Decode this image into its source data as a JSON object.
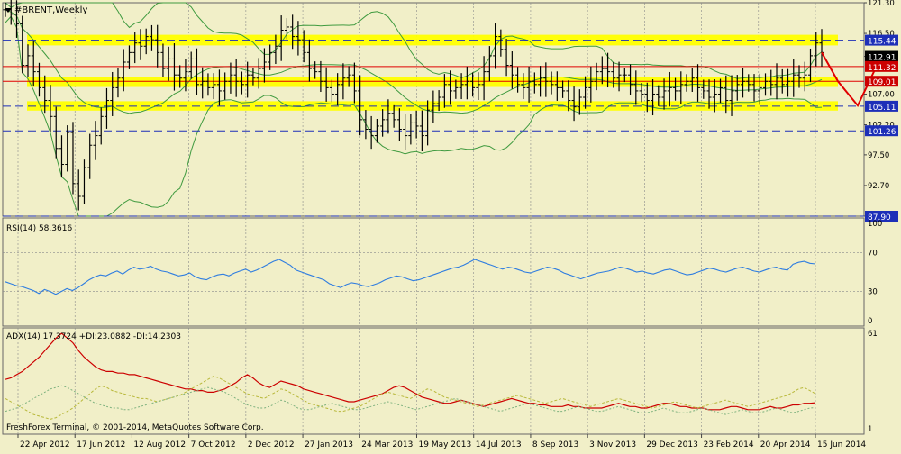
{
  "terminal": {
    "symbol_title": "#BRENT,Weekly",
    "copyright": "FreshForex Terminal, © 2001-2014, MetaQuotes Software Corp."
  },
  "colors": {
    "background": "#f1efc8",
    "grid": "#8a8a8a",
    "candle": "#000000",
    "bollinger": "#3f9a3f",
    "support_zone": "#ffff00",
    "red_line": "#e00000",
    "blue_dashed": "#1d2fb8",
    "rsi_line": "#2f7de0",
    "adx_line": "#cc0000",
    "plus_di": "#b8b83a",
    "minus_di": "#7fb27f",
    "projection": "#e00000",
    "price_label_black": "#000000",
    "price_label_blue": "#1d2fb8",
    "price_label_red": "#cc0000"
  },
  "chart_data": [
    {
      "type": "ohlc",
      "panel": "price",
      "title": "#BRENT,Weekly",
      "y_ticks": [
        "121.30",
        "116.50",
        "112.91",
        "107.00",
        "102.20",
        "97.50",
        "92.70",
        "87.90"
      ],
      "x_ticks": [
        "22 Apr 2012",
        "17 Jun 2012",
        "12 Aug 2012",
        "7 Oct 2012",
        "2 Dec 2012",
        "27 Jan 2013",
        "24 Mar 2013",
        "19 May 2013",
        "14 Jul 2013",
        "8 Sep 2013",
        "3 Nov 2013",
        "29 Dec 2013",
        "23 Feb 2014",
        "20 Apr 2014",
        "15 Jun 2014"
      ],
      "ylim": [
        87.9,
        121.3
      ],
      "closes": [
        120.2,
        119.5,
        118.0,
        111.5,
        113.0,
        110.5,
        108.0,
        106.0,
        103.5,
        98.5,
        96.0,
        101.0,
        93.0,
        91.0,
        95.5,
        99.0,
        100.5,
        103.5,
        106.0,
        108.0,
        109.5,
        112.0,
        113.5,
        115.0,
        114.5,
        116.0,
        115.5,
        113.5,
        111.0,
        112.5,
        110.0,
        109.5,
        110.5,
        112.5,
        108.5,
        109.0,
        108.0,
        108.5,
        107.5,
        109.0,
        110.0,
        109.0,
        108.5,
        110.0,
        109.5,
        111.0,
        112.0,
        113.5,
        114.5,
        117.0,
        117.5,
        116.0,
        115.5,
        113.5,
        111.0,
        110.5,
        109.0,
        108.0,
        107.0,
        108.5,
        109.5,
        110.0,
        107.5,
        103.0,
        101.5,
        100.5,
        102.0,
        103.0,
        104.0,
        103.0,
        101.5,
        100.5,
        102.5,
        102.0,
        100.5,
        104.5,
        105.5,
        106.5,
        108.5,
        107.5,
        108.0,
        108.5,
        109.0,
        108.0,
        108.5,
        110.5,
        113.0,
        116.0,
        114.0,
        111.5,
        110.0,
        108.5,
        108.0,
        109.0,
        108.5,
        109.5,
        109.0,
        108.5,
        108.0,
        107.5,
        106.0,
        105.0,
        106.5,
        108.0,
        109.0,
        110.5,
        111.0,
        110.5,
        109.5,
        110.0,
        110.0,
        108.5,
        107.5,
        107.0,
        106.0,
        107.0,
        106.5,
        107.5,
        108.0,
        107.5,
        108.5,
        109.0,
        109.5,
        108.0,
        107.5,
        106.5,
        107.0,
        108.0,
        106.0,
        107.5,
        108.5,
        109.0,
        108.5,
        107.5,
        108.0,
        109.0,
        108.5,
        109.5,
        108.5,
        109.0,
        110.0,
        109.5,
        110.0,
        113.0,
        115.0,
        113.5
      ],
      "horizontal_levels": [
        {
          "label": "115.44",
          "style": "blue-dashed",
          "value": 115.44
        },
        {
          "label": "112.91",
          "style": "black-label",
          "value": 112.91
        },
        {
          "label": "111.32",
          "style": "red-solid",
          "value": 111.32
        },
        {
          "label": "109.01",
          "style": "red-solid",
          "value": 109.01
        },
        {
          "label": "105.11",
          "style": "blue-dashed",
          "value": 105.11
        },
        {
          "label": "101.26",
          "style": "blue-dashed",
          "value": 101.26
        },
        {
          "label": "87.90",
          "style": "blue-dashed",
          "value": 87.9
        }
      ],
      "zones": [
        {
          "name": "resistance",
          "from": 114.9,
          "to": 116.0
        },
        {
          "name": "middle",
          "from": 108.4,
          "to": 109.4
        },
        {
          "name": "support",
          "from": 104.7,
          "to": 105.6
        }
      ],
      "projection": [
        113.5,
        109.0,
        105.2,
        112.0
      ]
    },
    {
      "type": "line",
      "panel": "rsi",
      "label": "RSI(14) 58.3616",
      "y_ticks": [
        "100",
        "70",
        "30",
        "0"
      ],
      "ylim": [
        0,
        100
      ],
      "levels": [
        70,
        30
      ],
      "values": [
        40,
        38,
        36,
        35,
        33,
        31,
        28,
        32,
        30,
        27,
        30,
        33,
        31,
        34,
        38,
        42,
        45,
        47,
        46,
        49,
        51,
        48,
        52,
        55,
        53,
        54,
        56,
        53,
        51,
        50,
        48,
        46,
        47,
        49,
        45,
        43,
        42,
        45,
        47,
        48,
        46,
        49,
        51,
        53,
        50,
        52,
        55,
        58,
        61,
        63,
        60,
        57,
        52,
        50,
        48,
        46,
        44,
        42,
        38,
        36,
        34,
        37,
        39,
        38,
        36,
        35,
        37,
        39,
        42,
        44,
        46,
        45,
        43,
        41,
        42,
        44,
        46,
        48,
        50,
        52,
        54,
        55,
        57,
        60,
        63,
        61,
        59,
        57,
        55,
        53,
        55,
        54,
        52,
        50,
        49,
        51,
        53,
        55,
        54,
        52,
        49,
        47,
        45,
        43,
        45,
        47,
        49,
        50,
        51,
        53,
        55,
        54,
        52,
        50,
        51,
        49,
        48,
        50,
        52,
        53,
        51,
        49,
        47,
        48,
        50,
        52,
        54,
        53,
        51,
        50,
        52,
        54,
        55,
        53,
        51,
        50,
        52,
        54,
        55,
        53,
        52,
        58,
        60,
        61,
        59,
        58.36
      ]
    },
    {
      "type": "line",
      "panel": "adx",
      "label": "ADX(14) 17.3724 +DI:23.0882 -DI:14.2303",
      "y_ticks": [
        "61",
        "1"
      ],
      "ylim": [
        1,
        61
      ],
      "series": [
        {
          "name": "ADX(14) 17.3724",
          "values": [
            32,
            33,
            35,
            37,
            40,
            43,
            46,
            50,
            54,
            58,
            61,
            58,
            55,
            50,
            46,
            43,
            40,
            38,
            37,
            37,
            36,
            36,
            35,
            35,
            34,
            33,
            32,
            31,
            30,
            29,
            28,
            27,
            26,
            26,
            25,
            25,
            24,
            24,
            25,
            26,
            28,
            30,
            33,
            35,
            33,
            30,
            28,
            27,
            29,
            31,
            30,
            29,
            28,
            26,
            25,
            24,
            23,
            22,
            21,
            20,
            19,
            18,
            18,
            19,
            20,
            21,
            22,
            23,
            25,
            27,
            28,
            27,
            25,
            23,
            21,
            20,
            19,
            18,
            17,
            17,
            18,
            19,
            18,
            17,
            16,
            15,
            16,
            17,
            18,
            19,
            20,
            19,
            18,
            17,
            17,
            16,
            16,
            15,
            15,
            15,
            16,
            15,
            15,
            14,
            14,
            14,
            14,
            15,
            16,
            17,
            16,
            15,
            15,
            14,
            14,
            15,
            16,
            17,
            17,
            16,
            15,
            15,
            14,
            14,
            14,
            13,
            13,
            13,
            14,
            15,
            15,
            14,
            13,
            13,
            13,
            14,
            15,
            14,
            14,
            15,
            16,
            16,
            17,
            17,
            17.37
          ]
        },
        {
          "name": "+DI:23.0882",
          "values": [
            20,
            18,
            16,
            14,
            12,
            10,
            9,
            8,
            7,
            8,
            10,
            12,
            14,
            17,
            20,
            23,
            26,
            28,
            27,
            25,
            24,
            23,
            22,
            21,
            20,
            20,
            19,
            18,
            19,
            20,
            21,
            22,
            24,
            26,
            28,
            30,
            32,
            34,
            33,
            31,
            29,
            27,
            25,
            23,
            22,
            21,
            20,
            22,
            24,
            26,
            25,
            23,
            21,
            19,
            17,
            16,
            15,
            14,
            13,
            12,
            12,
            13,
            14,
            15,
            17,
            19,
            21,
            23,
            24,
            23,
            22,
            21,
            20,
            22,
            24,
            26,
            25,
            23,
            21,
            20,
            19,
            18,
            17,
            16,
            15,
            16,
            17,
            18,
            19,
            20,
            21,
            22,
            21,
            20,
            19,
            18,
            17,
            18,
            19,
            20,
            19,
            18,
            17,
            16,
            15,
            16,
            17,
            18,
            19,
            20,
            19,
            18,
            17,
            16,
            15,
            14,
            15,
            16,
            17,
            18,
            17,
            16,
            15,
            14,
            15,
            16,
            17,
            18,
            19,
            18,
            17,
            16,
            15,
            16,
            17,
            18,
            19,
            20,
            21,
            22,
            24,
            26,
            27,
            25,
            23.09
          ]
        },
        {
          "name": "-DI:14.2303",
          "values": [
            12,
            13,
            14,
            16,
            18,
            20,
            22,
            24,
            26,
            27,
            28,
            27,
            25,
            23,
            21,
            19,
            17,
            16,
            15,
            14,
            14,
            13,
            13,
            14,
            15,
            16,
            17,
            18,
            19,
            20,
            21,
            22,
            23,
            24,
            25,
            26,
            27,
            26,
            25,
            24,
            22,
            20,
            18,
            16,
            15,
            14,
            14,
            15,
            17,
            19,
            18,
            16,
            14,
            13,
            13,
            14,
            15,
            16,
            17,
            16,
            15,
            14,
            13,
            13,
            14,
            15,
            16,
            17,
            18,
            17,
            16,
            15,
            14,
            13,
            14,
            15,
            16,
            17,
            18,
            19,
            20,
            19,
            18,
            17,
            16,
            15,
            14,
            13,
            12,
            13,
            14,
            15,
            16,
            17,
            16,
            15,
            14,
            13,
            12,
            12,
            13,
            14,
            15,
            14,
            13,
            12,
            12,
            13,
            14,
            15,
            14,
            13,
            12,
            11,
            11,
            12,
            13,
            14,
            13,
            12,
            11,
            11,
            12,
            13,
            14,
            13,
            12,
            11,
            10,
            11,
            12,
            13,
            12,
            11,
            11,
            12,
            13,
            14,
            13,
            12,
            11,
            12,
            13,
            14,
            14.23
          ]
        }
      ]
    }
  ]
}
